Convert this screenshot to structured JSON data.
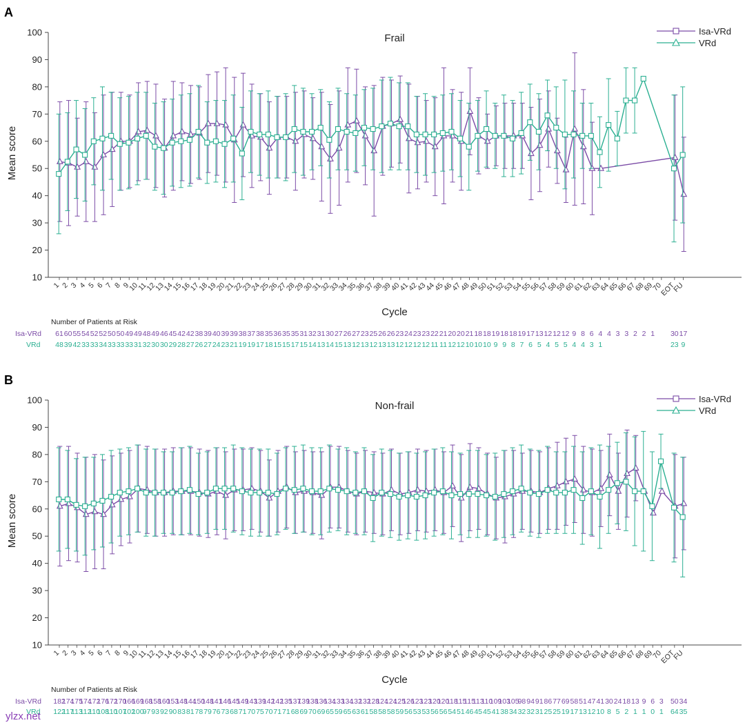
{
  "colors": {
    "isa": "#7b4ba6",
    "vrd": "#2aaf91",
    "axis": "#444444"
  },
  "legend_labels": [
    "Isa-VRd",
    "VRd"
  ],
  "watermark": "ylzx.net",
  "chart_data": [
    {
      "type": "line",
      "panel_letter": "A",
      "title": "Frail",
      "xlabel": "Cycle",
      "ylabel": "Mean score",
      "ylim": [
        10,
        100
      ],
      "yticks": [
        10,
        20,
        30,
        40,
        50,
        60,
        70,
        80,
        90,
        100
      ],
      "categories": [
        "1",
        "2",
        "3",
        "4",
        "5",
        "6",
        "7",
        "8",
        "9",
        "10",
        "11",
        "12",
        "13",
        "14",
        "15",
        "16",
        "17",
        "18",
        "19",
        "20",
        "21",
        "22",
        "23",
        "24",
        "25",
        "26",
        "27",
        "28",
        "29",
        "30",
        "31",
        "32",
        "33",
        "34",
        "35",
        "36",
        "37",
        "38",
        "39",
        "40",
        "41",
        "42",
        "43",
        "44",
        "45",
        "46",
        "47",
        "48",
        "49",
        "50",
        "51",
        "52",
        "53",
        "54",
        "55",
        "56",
        "57",
        "58",
        "59",
        "60",
        "61",
        "62",
        "63",
        "64",
        "65",
        "66",
        "67",
        "68",
        "69",
        "70",
        "EOT",
        "FU"
      ],
      "series": [
        {
          "name": "Isa-VRd",
          "marker": "triangle",
          "values": [
            52.5,
            52.0,
            50.5,
            52.5,
            50.5,
            55.0,
            57.0,
            60.0,
            60.0,
            63.5,
            64.0,
            62.0,
            57.5,
            62.0,
            63.5,
            62.5,
            63.0,
            66.5,
            66.5,
            66.0,
            60.5,
            66.0,
            62.0,
            61.5,
            57.5,
            61.5,
            61.5,
            60.0,
            62.5,
            61.0,
            58.0,
            53.5,
            57.5,
            66.0,
            67.5,
            62.0,
            56.5,
            65.5,
            66.5,
            68.0,
            61.0,
            59.5,
            60.0,
            58.0,
            62.0,
            62.0,
            60.0,
            71.0,
            62.0,
            60.0,
            62.0,
            62.0,
            62.0,
            62.0,
            55.5,
            58.5,
            64.5,
            56.5,
            49.5,
            64.5,
            58.0,
            50.0,
            50.0,
            null,
            null,
            null,
            null,
            null,
            null,
            null,
            54.0,
            40.5
          ],
          "error": [
            22,
            23,
            18,
            22,
            20,
            22,
            21,
            18,
            17,
            18,
            18,
            19,
            18,
            20,
            18,
            18,
            17,
            18,
            19,
            21,
            23,
            19,
            19,
            16,
            17,
            15,
            15,
            18,
            16,
            15,
            20,
            20,
            21,
            21,
            19,
            18,
            24,
            18,
            16,
            16,
            20,
            17,
            15,
            18,
            25,
            17,
            18,
            16,
            14,
            10,
            11,
            12,
            12,
            12,
            17,
            17,
            14,
            12,
            12,
            28,
            21,
            17,
            0,
            null,
            null,
            null,
            null,
            null,
            null,
            null,
            23,
            21
          ]
        },
        {
          "name": "VRd",
          "marker": "square",
          "values": [
            48.0,
            52.5,
            57.0,
            55.0,
            60.0,
            61.0,
            62.0,
            59.0,
            59.5,
            61.0,
            62.0,
            58.0,
            57.5,
            59.5,
            60.0,
            60.5,
            63.5,
            59.5,
            60.0,
            59.0,
            61.0,
            55.5,
            63.5,
            62.5,
            62.5,
            61.5,
            61.5,
            64.5,
            63.5,
            63.5,
            65.0,
            60.5,
            64.5,
            63.5,
            63.0,
            65.0,
            64.5,
            65.5,
            66.5,
            65.5,
            65.5,
            62.5,
            62.5,
            62.5,
            63.0,
            63.5,
            61.0,
            58.0,
            62.0,
            64.5,
            62.0,
            62.0,
            61.0,
            63.0,
            67.0,
            63.5,
            69.5,
            65.0,
            62.5,
            62.5,
            62.0,
            62.0,
            56.0,
            66.0,
            61.0,
            75.0,
            75.0,
            83.0,
            null,
            null,
            50.0,
            55.0
          ],
          "error": [
            22,
            18,
            18,
            17,
            16,
            19,
            16,
            17,
            17,
            17,
            16,
            16,
            17,
            16,
            17,
            17,
            17,
            15,
            15,
            16,
            16,
            17,
            15,
            15,
            16,
            15,
            16,
            16,
            16,
            14,
            14,
            14,
            15,
            14,
            14,
            14,
            15,
            17,
            17,
            16,
            16,
            14,
            15,
            14,
            14,
            14,
            14,
            16,
            13,
            14,
            12,
            15,
            14,
            15,
            14,
            14,
            13,
            15,
            20,
            16,
            12,
            12,
            13,
            17,
            10,
            12,
            12,
            0,
            null,
            null,
            27,
            25
          ]
        }
      ],
      "risk_title": "Number of Patients at Risk",
      "risk": [
        {
          "name": "Isa-VRd",
          "values": [
            "61",
            "60",
            "55",
            "54",
            "52",
            "52",
            "50",
            "50",
            "49",
            "49",
            "48",
            "49",
            "46",
            "45",
            "42",
            "42",
            "38",
            "39",
            "40",
            "39",
            "39",
            "38",
            "37",
            "38",
            "35",
            "36",
            "35",
            "35",
            "31",
            "32",
            "31",
            "30",
            "27",
            "26",
            "27",
            "23",
            "25",
            "26",
            "26",
            "23",
            "24",
            "23",
            "23",
            "22",
            "21",
            "20",
            "20",
            "21",
            "18",
            "18",
            "19",
            "18",
            "18",
            "19",
            "17",
            "13",
            "12",
            "12",
            "12",
            "9",
            "8",
            "6",
            "4",
            "4",
            "3",
            "3",
            "2",
            "2",
            "1",
            "",
            "30",
            "17"
          ]
        },
        {
          "name": "VRd",
          "values": [
            "48",
            "39",
            "42",
            "33",
            "33",
            "34",
            "33",
            "33",
            "33",
            "31",
            "32",
            "30",
            "30",
            "29",
            "28",
            "27",
            "26",
            "27",
            "24",
            "23",
            "21",
            "19",
            "19",
            "17",
            "18",
            "15",
            "15",
            "17",
            "15",
            "14",
            "13",
            "14",
            "15",
            "13",
            "12",
            "13",
            "12",
            "13",
            "13",
            "12",
            "12",
            "12",
            "12",
            "11",
            "11",
            "12",
            "12",
            "10",
            "10",
            "10",
            "9",
            "9",
            "8",
            "7",
            "6",
            "5",
            "4",
            "5",
            "5",
            "4",
            "4",
            "3",
            "1",
            "",
            "",
            "",
            "",
            "",
            "",
            "",
            "23",
            "9"
          ]
        }
      ]
    },
    {
      "type": "line",
      "panel_letter": "B",
      "title": "Non-frail",
      "xlabel": "Cycle",
      "ylabel": "Mean score",
      "ylim": [
        10,
        100
      ],
      "yticks": [
        10,
        20,
        30,
        40,
        50,
        60,
        70,
        80,
        90,
        100
      ],
      "categories": [
        "1",
        "2",
        "3",
        "4",
        "5",
        "6",
        "7",
        "8",
        "9",
        "10",
        "11",
        "12",
        "13",
        "14",
        "15",
        "16",
        "17",
        "18",
        "19",
        "20",
        "21",
        "22",
        "23",
        "24",
        "25",
        "26",
        "27",
        "28",
        "29",
        "30",
        "31",
        "32",
        "33",
        "34",
        "35",
        "36",
        "37",
        "38",
        "39",
        "40",
        "41",
        "42",
        "43",
        "44",
        "45",
        "46",
        "47",
        "48",
        "49",
        "50",
        "51",
        "52",
        "53",
        "54",
        "55",
        "56",
        "57",
        "58",
        "59",
        "60",
        "61",
        "62",
        "63",
        "64",
        "65",
        "66",
        "67",
        "68",
        "69",
        "70",
        "EOT",
        "FU"
      ],
      "series": [
        {
          "name": "Isa-VRd",
          "marker": "triangle",
          "values": [
            61.0,
            62.0,
            60.5,
            58.0,
            59.0,
            58.0,
            61.5,
            63.5,
            64.5,
            67.5,
            67.0,
            66.0,
            66.0,
            66.5,
            66.5,
            66.5,
            66.0,
            65.5,
            66.5,
            65.0,
            67.0,
            67.0,
            67.5,
            66.5,
            64.0,
            66.5,
            68.0,
            66.0,
            66.5,
            66.0,
            65.0,
            68.0,
            68.0,
            66.5,
            65.5,
            66.5,
            66.0,
            65.5,
            67.0,
            65.5,
            66.0,
            67.0,
            66.5,
            67.0,
            66.0,
            68.5,
            64.0,
            68.0,
            67.5,
            65.5,
            64.0,
            64.5,
            65.5,
            66.5,
            66.5,
            66.0,
            67.5,
            68.5,
            70.0,
            71.0,
            67.0,
            66.0,
            67.5,
            72.5,
            66.5,
            73.0,
            75.0,
            66.5,
            58.5,
            66.5,
            61.0,
            62.0
          ],
          "error": [
            22,
            21,
            20,
            21,
            21,
            20,
            18,
            17,
            17,
            16,
            16,
            16,
            16,
            16,
            16,
            16,
            16,
            16,
            16,
            16,
            15,
            15,
            15,
            15,
            14,
            15,
            15,
            15,
            15,
            15,
            16,
            15,
            15,
            15,
            15,
            15,
            15,
            15,
            15,
            15,
            15,
            15,
            15,
            15,
            15,
            15,
            16,
            16,
            15,
            15,
            15,
            17,
            16,
            14,
            15,
            15,
            15,
            16,
            16,
            16,
            16,
            16,
            14,
            15,
            14,
            16,
            12,
            0,
            0,
            0,
            19,
            17
          ]
        },
        {
          "name": "VRd",
          "marker": "square",
          "values": [
            63.5,
            63.5,
            61.5,
            61.0,
            62.0,
            63.0,
            64.5,
            66.0,
            66.5,
            67.5,
            66.0,
            66.0,
            66.0,
            66.0,
            66.5,
            67.0,
            65.5,
            66.0,
            67.5,
            67.5,
            67.5,
            66.5,
            66.0,
            66.0,
            66.0,
            65.5,
            67.5,
            67.0,
            67.5,
            66.5,
            66.5,
            67.5,
            67.0,
            66.5,
            66.0,
            66.5,
            64.0,
            66.0,
            65.5,
            64.5,
            65.0,
            64.5,
            65.0,
            66.0,
            66.5,
            65.0,
            65.5,
            65.5,
            65.5,
            65.0,
            64.5,
            65.5,
            66.5,
            67.5,
            66.0,
            65.5,
            67.0,
            66.0,
            66.0,
            67.0,
            64.0,
            66.5,
            64.5,
            67.0,
            69.5,
            70.0,
            66.5,
            66.5,
            61.0,
            77.5,
            60.5,
            57.0
          ],
          "error": [
            19,
            18,
            17,
            18,
            17,
            17,
            17,
            16,
            16,
            16,
            16,
            16,
            15,
            15,
            16,
            16,
            15,
            15,
            15,
            15,
            16,
            16,
            16,
            16,
            16,
            15,
            15,
            16,
            16,
            16,
            16,
            16,
            15,
            16,
            15,
            16,
            16,
            16,
            16,
            16,
            16,
            16,
            16,
            16,
            16,
            16,
            15,
            16,
            16,
            15,
            16,
            16,
            16,
            16,
            16,
            16,
            16,
            15,
            15,
            16,
            17,
            16,
            19,
            16,
            15,
            18,
            20,
            22,
            20,
            10,
            20,
            22
          ]
        }
      ],
      "risk_title": "Number of Patients at Risk",
      "risk": [
        {
          "name": "Isa-VRd",
          "values": [
            "182",
            "174",
            "175",
            "174",
            "172",
            "176",
            "172",
            "170",
            "166",
            "169",
            "168",
            "158",
            "160",
            "153",
            "148",
            "144",
            "150",
            "148",
            "141",
            "146",
            "145",
            "149",
            "143",
            "139",
            "142",
            "142",
            "135",
            "137",
            "139",
            "138",
            "136",
            "134",
            "133",
            "134",
            "132",
            "132",
            "128",
            "124",
            "124",
            "125",
            "126",
            "123",
            "123",
            "120",
            "120",
            "118",
            "115",
            "115",
            "113",
            "110",
            "109",
            "103",
            "105",
            "98",
            "94",
            "91",
            "86",
            "77",
            "69",
            "58",
            "51",
            "47",
            "41",
            "30",
            "24",
            "18",
            "13",
            "9",
            "6",
            "3",
            "50",
            "34"
          ]
        },
        {
          "name": "VRd",
          "values": [
            "122",
            "117",
            "113",
            "112",
            "110",
            "108",
            "110",
            "107",
            "102",
            "100",
            "97",
            "93",
            "92",
            "90",
            "83",
            "81",
            "78",
            "79",
            "76",
            "73",
            "68",
            "71",
            "70",
            "75",
            "70",
            "71",
            "71",
            "68",
            "69",
            "70",
            "69",
            "65",
            "59",
            "65",
            "63",
            "61",
            "58",
            "58",
            "58",
            "59",
            "56",
            "53",
            "53",
            "56",
            "56",
            "54",
            "51",
            "46",
            "45",
            "45",
            "41",
            "38",
            "34",
            "32",
            "32",
            "31",
            "25",
            "25",
            "19",
            "17",
            "13",
            "12",
            "10",
            "8",
            "5",
            "2",
            "1",
            "1",
            "0",
            "1",
            "64",
            "35"
          ]
        }
      ]
    }
  ]
}
